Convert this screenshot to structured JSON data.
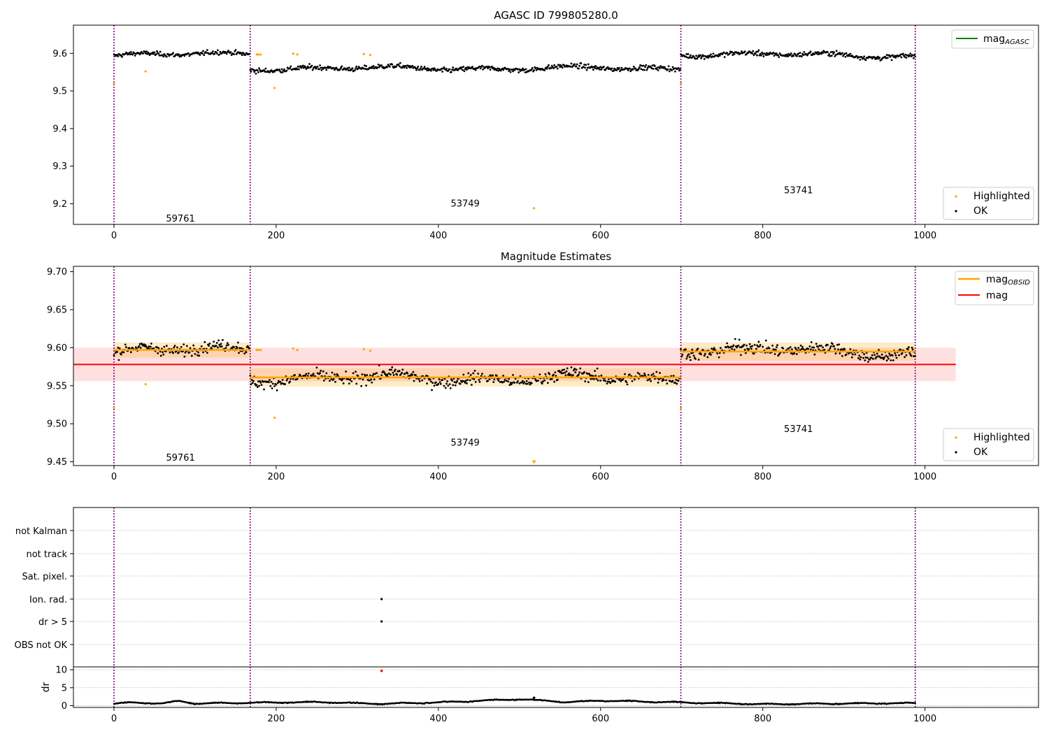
{
  "chart_data": [
    {
      "type": "scatter",
      "title": "AGASC ID 799805280.0",
      "xlabel": "",
      "ylabel": "",
      "xlim": [
        -50,
        1140
      ],
      "ylim": [
        9.145,
        9.675
      ],
      "xticks": [
        0,
        200,
        400,
        600,
        800,
        1000
      ],
      "yticks": [
        9.2,
        9.3,
        9.4,
        9.5,
        9.6
      ],
      "ytick_labels": [
        "9.2",
        "9.3",
        "9.4",
        "9.5",
        "9.6"
      ],
      "grid": false,
      "segment_boundaries": [
        0,
        168,
        699,
        988
      ],
      "segment_labels": [
        {
          "text": "59761",
          "x": 82,
          "y": 9.16
        },
        {
          "text": "53749",
          "x": 433,
          "y": 9.2
        },
        {
          "text": "53741",
          "x": 844,
          "y": 9.235
        }
      ],
      "legend_upper": {
        "position": "upper-right",
        "entries": [
          {
            "label": "mag",
            "subscript": "AGASC",
            "color": "#008000"
          }
        ]
      },
      "legend_lower": {
        "position": "lower-right",
        "entries": [
          {
            "label": "Highlighted",
            "color": "#ffa500",
            "marker": "dot"
          },
          {
            "label": "OK",
            "color": "#000000",
            "marker": "dot"
          }
        ]
      },
      "segments_ok": [
        {
          "x0": 0,
          "x1": 167,
          "base": 9.597,
          "slope": 0.008,
          "noise": 0.009
        },
        {
          "x0": 168,
          "x1": 698,
          "base": 9.56,
          "slope": 0,
          "noise": 0.01
        },
        {
          "x0": 699,
          "x1": 988,
          "base": 9.596,
          "slope": -0.006,
          "noise": 0.01
        }
      ],
      "highlighted_points": [
        [
          0,
          9.521
        ],
        [
          39,
          9.552
        ],
        [
          176,
          9.597
        ],
        [
          178,
          9.597
        ],
        [
          181,
          9.597
        ],
        [
          198,
          9.508
        ],
        [
          221,
          9.599
        ],
        [
          226,
          9.597
        ],
        [
          308,
          9.598
        ],
        [
          316,
          9.596
        ],
        [
          518,
          9.188
        ],
        [
          699,
          9.52
        ]
      ]
    },
    {
      "type": "scatter",
      "title": "Magnitude Estimates",
      "xlabel": "",
      "ylabel": "",
      "xlim": [
        -50,
        1140
      ],
      "ylim": [
        9.445,
        9.707
      ],
      "xticks": [
        0,
        200,
        400,
        600,
        800,
        1000
      ],
      "yticks": [
        9.45,
        9.5,
        9.55,
        9.6,
        9.65,
        9.7
      ],
      "ytick_labels": [
        "9.45",
        "9.50",
        "9.55",
        "9.60",
        "9.65",
        "9.70"
      ],
      "grid": false,
      "segment_boundaries": [
        0,
        168,
        699,
        988
      ],
      "segment_labels": [
        {
          "text": "59761",
          "x": 82,
          "y": 9.455
        },
        {
          "text": "53749",
          "x": 433,
          "y": 9.475
        },
        {
          "text": "53741",
          "x": 844,
          "y": 9.493
        }
      ],
      "legend_upper": {
        "position": "upper-right",
        "entries": [
          {
            "label": "mag",
            "subscript": "OBSID",
            "color": "#ffa500"
          },
          {
            "label": "mag",
            "subscript": "",
            "color": "#ff0000"
          }
        ]
      },
      "legend_lower": {
        "position": "lower-right",
        "entries": [
          {
            "label": "Highlighted",
            "color": "#ffa500",
            "marker": "dot"
          },
          {
            "label": "OK",
            "color": "#000000",
            "marker": "dot"
          }
        ]
      },
      "mag_global": {
        "value": 9.578,
        "band": [
          9.556,
          9.6
        ],
        "x0": -50,
        "x1": 1038,
        "color": "#ff0000"
      },
      "mag_obsid": [
        {
          "x0": 0,
          "x1": 168,
          "value": 9.597,
          "band": [
            9.587,
            9.607
          ]
        },
        {
          "x0": 168,
          "x1": 699,
          "value": 9.561,
          "band": [
            9.549,
            9.573
          ]
        },
        {
          "x0": 699,
          "x1": 988,
          "value": 9.595,
          "band": [
            9.583,
            9.607
          ]
        }
      ],
      "segments_ok": [
        {
          "x0": 0,
          "x1": 167,
          "base": 9.597,
          "slope": 0.008,
          "noise": 0.011
        },
        {
          "x0": 168,
          "x1": 698,
          "base": 9.56,
          "slope": 0,
          "noise": 0.012
        },
        {
          "x0": 699,
          "x1": 988,
          "base": 9.596,
          "slope": -0.006,
          "noise": 0.013
        }
      ],
      "highlighted_points": [
        [
          0,
          9.521
        ],
        [
          39,
          9.552
        ],
        [
          176,
          9.597
        ],
        [
          178,
          9.597
        ],
        [
          181,
          9.597
        ],
        [
          198,
          9.508
        ],
        [
          221,
          9.599
        ],
        [
          226,
          9.597
        ],
        [
          308,
          9.598
        ],
        [
          316,
          9.596
        ],
        [
          699,
          9.52
        ]
      ],
      "offscale_marker": {
        "x": 518,
        "y": 9.449,
        "marker": "down-triangle",
        "color": "#ffa500"
      }
    },
    {
      "type": "scatter",
      "title": "",
      "xlabel": "",
      "ylabel": "",
      "xlim": [
        -50,
        1140
      ],
      "flag_labels": [
        "not Kalman",
        "not track",
        "Sat. pixel.",
        "Ion. rad.",
        "dr > 5",
        "OBS not OK"
      ],
      "flag_points": [
        {
          "flag": "Ion. rad.",
          "x": 330
        },
        {
          "flag": "dr > 5",
          "x": 330
        }
      ],
      "segment_boundaries": [
        0,
        168,
        699,
        988
      ],
      "grid": true
    },
    {
      "type": "line",
      "title": "",
      "xlabel": "",
      "ylabel": "dr",
      "xlim": [
        -50,
        1140
      ],
      "ylim": [
        -0.5,
        10.8
      ],
      "xticks": [
        0,
        200,
        400,
        600,
        800,
        1000
      ],
      "yticks": [
        0,
        5,
        10
      ],
      "ytick_labels": [
        "0",
        "5",
        "10"
      ],
      "segment_boundaries": [
        0,
        168,
        699,
        988
      ],
      "grid": true,
      "dr_profile": [
        [
          0,
          0.5
        ],
        [
          20,
          0.9
        ],
        [
          60,
          0.6
        ],
        [
          80,
          1.3
        ],
        [
          100,
          0.6
        ],
        [
          168,
          0.8
        ],
        [
          250,
          1.0
        ],
        [
          330,
          0.5
        ],
        [
          400,
          0.9
        ],
        [
          500,
          1.8
        ],
        [
          560,
          1.0
        ],
        [
          600,
          1.4
        ],
        [
          699,
          0.9
        ],
        [
          800,
          0.4
        ],
        [
          900,
          0.6
        ],
        [
          988,
          0.7
        ]
      ],
      "outliers": [
        {
          "x": 330,
          "y": 9.7,
          "color": "#ff0000"
        },
        {
          "x": 518,
          "y": 2.2,
          "color": "#000000"
        }
      ]
    }
  ]
}
